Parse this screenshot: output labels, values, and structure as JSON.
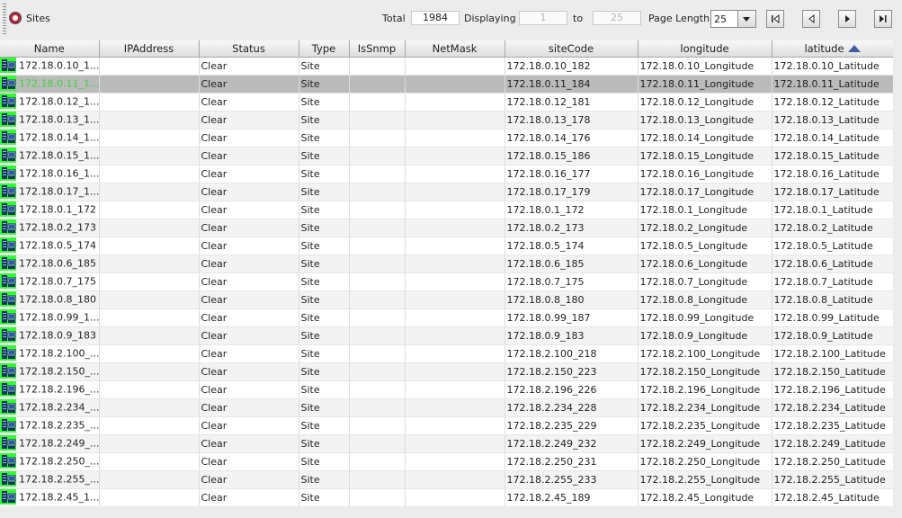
{
  "toolbar": {
    "title": "Sites",
    "total_label": "Total",
    "total_value": "1984",
    "displaying_label": "Displaying",
    "from_value": "1",
    "to_label": "to",
    "to_value": "25",
    "page_length_label": "Page Length",
    "page_length_value": "25"
  },
  "columns": [
    "Name",
    "IPAddress",
    "Status",
    "Type",
    "IsSnmp",
    "NetMask",
    "siteCode",
    "longitude",
    "latitude"
  ],
  "sorted_column": "latitude",
  "sort_direction": "ascending",
  "selected_row": 1,
  "rows": [
    {
      "name": "172.18.0.10_1...",
      "ip": "",
      "status": "Clear",
      "type": "Site",
      "snmp": "",
      "mask": "",
      "code": "172.18.0.10_182",
      "lon": "172.18.0.10_Longitude",
      "lat": "172.18.0.10_Latitude"
    },
    {
      "name": "172.18.0.11_1...",
      "ip": "",
      "status": "Clear",
      "type": "Site",
      "snmp": "",
      "mask": "",
      "code": "172.18.0.11_184",
      "lon": "172.18.0.11_Longitude",
      "lat": "172.18.0.11_Latitude"
    },
    {
      "name": "172.18.0.12_1...",
      "ip": "",
      "status": "Clear",
      "type": "Site",
      "snmp": "",
      "mask": "",
      "code": "172.18.0.12_181",
      "lon": "172.18.0.12_Longitude",
      "lat": "172.18.0.12_Latitude"
    },
    {
      "name": "172.18.0.13_1...",
      "ip": "",
      "status": "Clear",
      "type": "Site",
      "snmp": "",
      "mask": "",
      "code": "172.18.0.13_178",
      "lon": "172.18.0.13_Longitude",
      "lat": "172.18.0.13_Latitude"
    },
    {
      "name": "172.18.0.14_1...",
      "ip": "",
      "status": "Clear",
      "type": "Site",
      "snmp": "",
      "mask": "",
      "code": "172.18.0.14_176",
      "lon": "172.18.0.14_Longitude",
      "lat": "172.18.0.14_Latitude"
    },
    {
      "name": "172.18.0.15_1...",
      "ip": "",
      "status": "Clear",
      "type": "Site",
      "snmp": "",
      "mask": "",
      "code": "172.18.0.15_186",
      "lon": "172.18.0.15_Longitude",
      "lat": "172.18.0.15_Latitude"
    },
    {
      "name": "172.18.0.16_1...",
      "ip": "",
      "status": "Clear",
      "type": "Site",
      "snmp": "",
      "mask": "",
      "code": "172.18.0.16_177",
      "lon": "172.18.0.16_Longitude",
      "lat": "172.18.0.16_Latitude"
    },
    {
      "name": "172.18.0.17_1...",
      "ip": "",
      "status": "Clear",
      "type": "Site",
      "snmp": "",
      "mask": "",
      "code": "172.18.0.17_179",
      "lon": "172.18.0.17_Longitude",
      "lat": "172.18.0.17_Latitude"
    },
    {
      "name": "172.18.0.1_172",
      "ip": "",
      "status": "Clear",
      "type": "Site",
      "snmp": "",
      "mask": "",
      "code": "172.18.0.1_172",
      "lon": "172.18.0.1_Longitude",
      "lat": "172.18.0.1_Latitude"
    },
    {
      "name": "172.18.0.2_173",
      "ip": "",
      "status": "Clear",
      "type": "Site",
      "snmp": "",
      "mask": "",
      "code": "172.18.0.2_173",
      "lon": "172.18.0.2_Longitude",
      "lat": "172.18.0.2_Latitude"
    },
    {
      "name": "172.18.0.5_174",
      "ip": "",
      "status": "Clear",
      "type": "Site",
      "snmp": "",
      "mask": "",
      "code": "172.18.0.5_174",
      "lon": "172.18.0.5_Longitude",
      "lat": "172.18.0.5_Latitude"
    },
    {
      "name": "172.18.0.6_185",
      "ip": "",
      "status": "Clear",
      "type": "Site",
      "snmp": "",
      "mask": "",
      "code": "172.18.0.6_185",
      "lon": "172.18.0.6_Longitude",
      "lat": "172.18.0.6_Latitude"
    },
    {
      "name": "172.18.0.7_175",
      "ip": "",
      "status": "Clear",
      "type": "Site",
      "snmp": "",
      "mask": "",
      "code": "172.18.0.7_175",
      "lon": "172.18.0.7_Longitude",
      "lat": "172.18.0.7_Latitude"
    },
    {
      "name": "172.18.0.8_180",
      "ip": "",
      "status": "Clear",
      "type": "Site",
      "snmp": "",
      "mask": "",
      "code": "172.18.0.8_180",
      "lon": "172.18.0.8_Longitude",
      "lat": "172.18.0.8_Latitude"
    },
    {
      "name": "172.18.0.99_1...",
      "ip": "",
      "status": "Clear",
      "type": "Site",
      "snmp": "",
      "mask": "",
      "code": "172.18.0.99_187",
      "lon": "172.18.0.99_Longitude",
      "lat": "172.18.0.99_Latitude"
    },
    {
      "name": "172.18.0.9_183",
      "ip": "",
      "status": "Clear",
      "type": "Site",
      "snmp": "",
      "mask": "",
      "code": "172.18.0.9_183",
      "lon": "172.18.0.9_Longitude",
      "lat": "172.18.0.9_Latitude"
    },
    {
      "name": "172.18.2.100_...",
      "ip": "",
      "status": "Clear",
      "type": "Site",
      "snmp": "",
      "mask": "",
      "code": "172.18.2.100_218",
      "lon": "172.18.2.100_Longitude",
      "lat": "172.18.2.100_Latitude"
    },
    {
      "name": "172.18.2.150_...",
      "ip": "",
      "status": "Clear",
      "type": "Site",
      "snmp": "",
      "mask": "",
      "code": "172.18.2.150_223",
      "lon": "172.18.2.150_Longitude",
      "lat": "172.18.2.150_Latitude"
    },
    {
      "name": "172.18.2.196_...",
      "ip": "",
      "status": "Clear",
      "type": "Site",
      "snmp": "",
      "mask": "",
      "code": "172.18.2.196_226",
      "lon": "172.18.2.196_Longitude",
      "lat": "172.18.2.196_Latitude"
    },
    {
      "name": "172.18.2.234_...",
      "ip": "",
      "status": "Clear",
      "type": "Site",
      "snmp": "",
      "mask": "",
      "code": "172.18.2.234_228",
      "lon": "172.18.2.234_Longitude",
      "lat": "172.18.2.234_Latitude"
    },
    {
      "name": "172.18.2.235_...",
      "ip": "",
      "status": "Clear",
      "type": "Site",
      "snmp": "",
      "mask": "",
      "code": "172.18.2.235_229",
      "lon": "172.18.2.235_Longitude",
      "lat": "172.18.2.235_Latitude"
    },
    {
      "name": "172.18.2.249_...",
      "ip": "",
      "status": "Clear",
      "type": "Site",
      "snmp": "",
      "mask": "",
      "code": "172.18.2.249_232",
      "lon": "172.18.2.249_Longitude",
      "lat": "172.18.2.249_Latitude"
    },
    {
      "name": "172.18.2.250_...",
      "ip": "",
      "status": "Clear",
      "type": "Site",
      "snmp": "",
      "mask": "",
      "code": "172.18.2.250_231",
      "lon": "172.18.2.250_Longitude",
      "lat": "172.18.2.250_Latitude"
    },
    {
      "name": "172.18.2.255_...",
      "ip": "",
      "status": "Clear",
      "type": "Site",
      "snmp": "",
      "mask": "",
      "code": "172.18.2.255_233",
      "lon": "172.18.2.255_Longitude",
      "lat": "172.18.2.255_Latitude"
    },
    {
      "name": "172.18.2.45_1...",
      "ip": "",
      "status": "Clear",
      "type": "Site",
      "snmp": "",
      "mask": "",
      "code": "172.18.2.45_189",
      "lon": "172.18.2.45_Longitude",
      "lat": "172.18.2.45_Latitude"
    }
  ]
}
